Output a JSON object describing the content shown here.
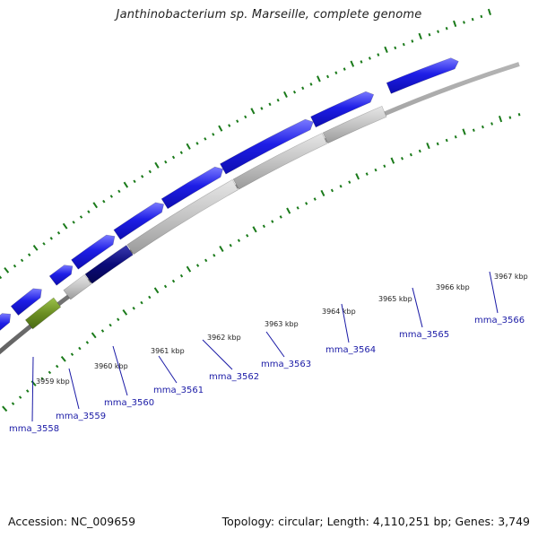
{
  "title": "Janthinobacterium sp. Marseille, complete genome",
  "footer": {
    "accession": "Accession: NC_009659",
    "stats": "Topology: circular; Length: 4,110,251 bp; Genes: 3,749"
  },
  "colors": {
    "cds_blue": "#1e1ee6",
    "cds_navy": "#0a0a78",
    "olive": "#6b8e23",
    "gray_feature": "#c0c0c0",
    "backbone": "#8c8c8c",
    "tick_green": "#1a7a1a",
    "label_blue": "#1a1aa6"
  },
  "ticks": [
    {
      "label": "3959 kbp"
    },
    {
      "label": "3960 kbp"
    },
    {
      "label": "3961 kbp"
    },
    {
      "label": "3962 kbp"
    },
    {
      "label": "3963 kbp"
    },
    {
      "label": "3964 kbp"
    },
    {
      "label": "3965 kbp"
    },
    {
      "label": "3966 kbp"
    },
    {
      "label": "3967 kbp"
    }
  ],
  "genes": [
    {
      "label": "mma_3558"
    },
    {
      "label": "mma_3559"
    },
    {
      "label": "mma_3560"
    },
    {
      "label": "mma_3561"
    },
    {
      "label": "mma_3562"
    },
    {
      "label": "mma_3563"
    },
    {
      "label": "mma_3564"
    },
    {
      "label": "mma_3565"
    },
    {
      "label": "mma_3566"
    }
  ]
}
